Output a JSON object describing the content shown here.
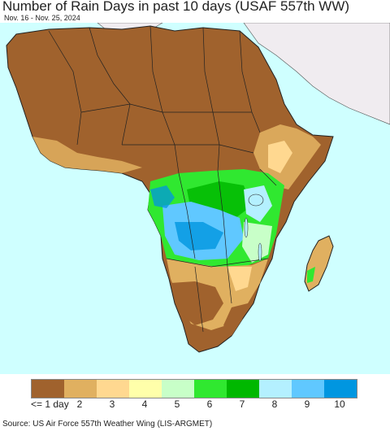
{
  "title": "Number of Rain Days in past 10 days (USAF 557th WW)",
  "subtitle": "Nov. 16 - Nov. 25, 2024",
  "source": "Source: US Air Force 557th Weather Wing (LIS-ARGMET)",
  "legend": {
    "items": [
      {
        "label": "<= 1 day",
        "color": "#a0622d"
      },
      {
        "label": "2",
        "color": "#e0b060"
      },
      {
        "label": "3",
        "color": "#ffd890"
      },
      {
        "label": "4",
        "color": "#ffffaa"
      },
      {
        "label": "5",
        "color": "#c8ffc8"
      },
      {
        "label": "6",
        "color": "#30e830"
      },
      {
        "label": "7",
        "color": "#00b800"
      },
      {
        "label": "8",
        "color": "#b4f0ff"
      },
      {
        "label": "9",
        "color": "#60c8ff"
      },
      {
        "label": "10",
        "color": "#0096e0"
      }
    ]
  },
  "colors": {
    "ocean": "#cfffff",
    "no_data_land": "#f0ecf0",
    "border": "#222222"
  }
}
